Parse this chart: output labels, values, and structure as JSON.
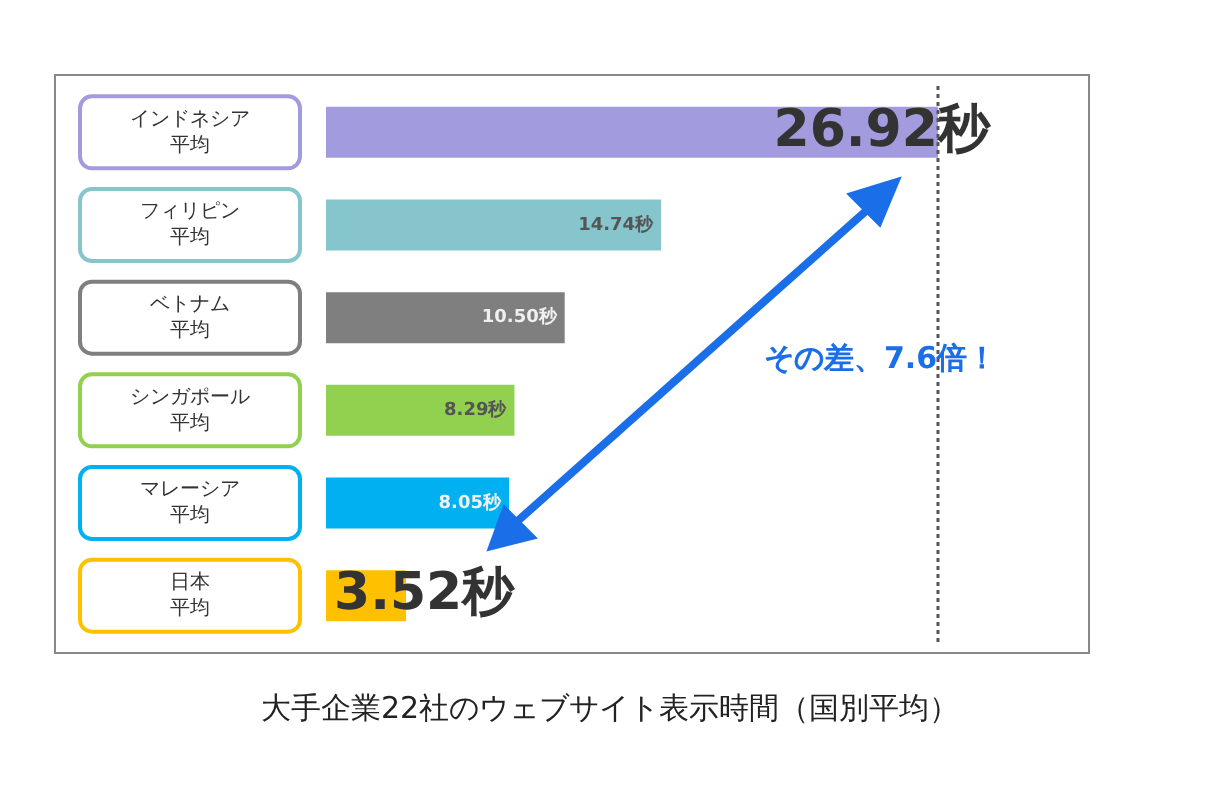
{
  "chart_data": {
    "type": "bar",
    "orientation": "horizontal",
    "title": "大手企業22社のウェブサイト表示時間（国別平均）",
    "categories": [
      "インドネシア平均",
      "フィリピン平均",
      "ベトナム平均",
      "シンガポール平均",
      "マレーシア平均",
      "日本平均"
    ],
    "values": [
      26.92,
      14.74,
      10.5,
      8.29,
      8.05,
      3.52
    ],
    "colors": [
      "#a29bde",
      "#86c5cc",
      "#7f7f7f",
      "#92d050",
      "#00b0f0",
      "#ffc000"
    ],
    "value_labels": [
      "26.92秒",
      "14.74秒",
      "10.50秒",
      "8.29秒",
      "8.05秒",
      "3.52秒"
    ],
    "tick_labels": false,
    "legend": false,
    "ref_lines": [
      {
        "axis": "x",
        "value": 26.92,
        "color": "#555555",
        "line_style": "dotted"
      }
    ],
    "annotations": [
      "その差、7.6倍！"
    ]
  }
}
